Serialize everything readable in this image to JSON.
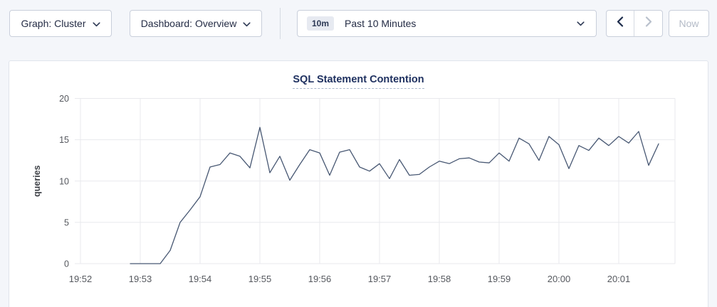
{
  "toolbar": {
    "graph_dropdown": {
      "label": "Graph: Cluster"
    },
    "dashboard_dropdown": {
      "label": "Dashboard: Overview"
    },
    "time_range": {
      "badge": "10m",
      "label": "Past 10 Minutes"
    },
    "now_button": {
      "label": "Now"
    }
  },
  "colors": {
    "accent_navy": "#1f3160",
    "line": "#485873",
    "grid": "#e8e9ed",
    "tick_text": "#55585e",
    "disabled_text": "#b4bbc7",
    "badge_bg": "#e7eaf1",
    "page_bg": "#f4f6fa"
  },
  "chart_data": {
    "type": "line",
    "title": "SQL Statement Contention",
    "xlabel": "",
    "ylabel": "queries",
    "ylim": [
      0,
      20
    ],
    "yticks": [
      0,
      5,
      10,
      15,
      20
    ],
    "xticks": [
      "19:52",
      "19:53",
      "19:54",
      "19:55",
      "19:56",
      "19:57",
      "19:58",
      "19:59",
      "20:00",
      "20:01"
    ],
    "grid": true,
    "legend_position": "none",
    "series": [
      {
        "name": "queries",
        "start_time": "19:52:50",
        "interval_seconds": 10,
        "values": [
          0,
          0,
          0,
          0,
          1.6,
          5.0,
          6.5,
          8.1,
          11.7,
          12.0,
          13.4,
          13.0,
          11.6,
          16.5,
          11.0,
          13.0,
          10.1,
          12.0,
          13.8,
          13.4,
          10.7,
          13.5,
          13.8,
          11.7,
          11.2,
          12.1,
          10.3,
          12.6,
          10.7,
          10.8,
          11.7,
          12.4,
          12.1,
          12.7,
          12.8,
          12.3,
          12.2,
          13.4,
          12.4,
          15.2,
          14.5,
          12.5,
          15.4,
          14.4,
          11.5,
          14.3,
          13.7,
          15.2,
          14.3,
          15.4,
          14.6,
          16.0,
          11.9,
          14.5
        ]
      }
    ]
  }
}
